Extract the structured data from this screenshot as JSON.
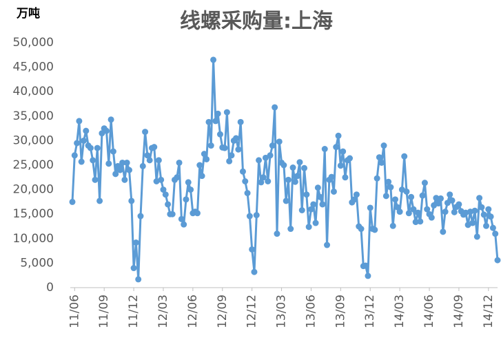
{
  "chart_data": {
    "type": "line",
    "title": "线螺采购量:上海",
    "y_unit": "万吨",
    "categories": [
      null,
      "11/06",
      null,
      null,
      null,
      null,
      null,
      null,
      null,
      null,
      null,
      null,
      null,
      null,
      "11/09",
      null,
      null,
      null,
      null,
      null,
      null,
      null,
      null,
      null,
      null,
      null,
      null,
      "11/12",
      null,
      null,
      null,
      null,
      null,
      null,
      null,
      null,
      null,
      null,
      null,
      null,
      "12/03",
      null,
      null,
      null,
      null,
      null,
      null,
      null,
      null,
      null,
      null,
      null,
      null,
      "12/06",
      null,
      null,
      null,
      null,
      null,
      null,
      null,
      null,
      null,
      null,
      null,
      null,
      "12/09",
      null,
      null,
      null,
      null,
      null,
      null,
      null,
      null,
      null,
      null,
      null,
      null,
      "12/12",
      null,
      null,
      null,
      null,
      null,
      null,
      null,
      null,
      null,
      null,
      null,
      null,
      "13/03",
      null,
      null,
      null,
      null,
      null,
      null,
      null,
      null,
      null,
      null,
      null,
      null,
      "13/06",
      null,
      null,
      null,
      null,
      null,
      null,
      null,
      null,
      null,
      null,
      null,
      null,
      "13/09",
      null,
      null,
      null,
      null,
      null,
      null,
      null,
      null,
      null,
      null,
      null,
      null,
      "13/12",
      null,
      null,
      null,
      null,
      null,
      null,
      null,
      null,
      null,
      null,
      null,
      null,
      "14/03",
      null,
      null,
      null,
      null,
      null,
      null,
      null,
      null,
      null,
      null,
      null,
      null,
      "14/06",
      null,
      null,
      null,
      null,
      null,
      null,
      null,
      null,
      null,
      null,
      null,
      null,
      "14/09",
      null,
      null,
      null,
      null,
      null,
      null,
      null,
      null,
      null,
      null,
      null,
      null,
      "14/12",
      null,
      null,
      null,
      null
    ],
    "series": [
      {
        "name": "线螺采购量:上海",
        "color": "#5b9bd5",
        "values": [
          17500,
          27000,
          29500,
          34000,
          25700,
          30000,
          32000,
          29000,
          28500,
          26000,
          22000,
          28500,
          17700,
          31500,
          32500,
          32000,
          25300,
          34300,
          27800,
          23200,
          24800,
          24000,
          25500,
          22000,
          25500,
          24000,
          17700,
          4000,
          9200,
          1700,
          14600,
          24800,
          31800,
          27000,
          26000,
          28500,
          28700,
          21700,
          26000,
          22000,
          20000,
          19000,
          17000,
          15000,
          15000,
          22000,
          22500,
          25500,
          14000,
          12900,
          18000,
          21500,
          20000,
          15200,
          15500,
          15200,
          25000,
          22800,
          27300,
          26200,
          33800,
          29000,
          46500,
          34000,
          35500,
          31300,
          28600,
          28500,
          35800,
          25800,
          27000,
          30000,
          30500,
          28200,
          33800,
          23700,
          21700,
          19300,
          14600,
          7800,
          3200,
          14800,
          26000,
          21500,
          22500,
          26500,
          21700,
          27000,
          29000,
          36800,
          11000,
          29800,
          25500,
          25000,
          17700,
          22000,
          12000,
          24500,
          21600,
          22800,
          25600,
          15800,
          24400,
          19000,
          12400,
          16000,
          17000,
          13200,
          20400,
          18500,
          17000,
          28300,
          8700,
          22000,
          22600,
          19600,
          28700,
          31000,
          24900,
          27800,
          22500,
          26000,
          26400,
          17400,
          18000,
          19000,
          12500,
          12000,
          4400,
          4500,
          2400,
          16300,
          12000,
          11800,
          22300,
          26600,
          25500,
          29000,
          18700,
          21600,
          20500,
          12600,
          18000,
          16400,
          15500,
          20000,
          26800,
          19600,
          15200,
          18500,
          16000,
          13400,
          15300,
          13500,
          18800,
          21400,
          16000,
          15000,
          14300,
          16800,
          18300,
          17200,
          18200,
          11400,
          15500,
          17300,
          19000,
          17800,
          15400,
          16500,
          17000,
          15600,
          14900,
          15300,
          12800,
          15500,
          13200,
          15700,
          10400,
          18300,
          16400,
          14900,
          12600,
          16000,
          14500,
          12200,
          11000,
          5600
        ]
      }
    ],
    "ylim": [
      0,
      50000
    ],
    "yticks": [
      0,
      {
        "value": 5000,
        "label": "5,000"
      },
      {
        "value": 10000,
        "label": "10,000"
      },
      {
        "value": 15000,
        "label": "15,000"
      },
      {
        "value": 20000,
        "label": "20,000"
      },
      {
        "value": 25000,
        "label": "25,000"
      },
      {
        "value": 30000,
        "label": "30,000"
      },
      {
        "value": 35000,
        "label": "35,000"
      },
      {
        "value": 40000,
        "label": "40,000"
      },
      {
        "value": 45000,
        "label": "45,000"
      },
      {
        "value": 50000,
        "label": "50,000"
      }
    ],
    "grid": false,
    "markers": true
  }
}
